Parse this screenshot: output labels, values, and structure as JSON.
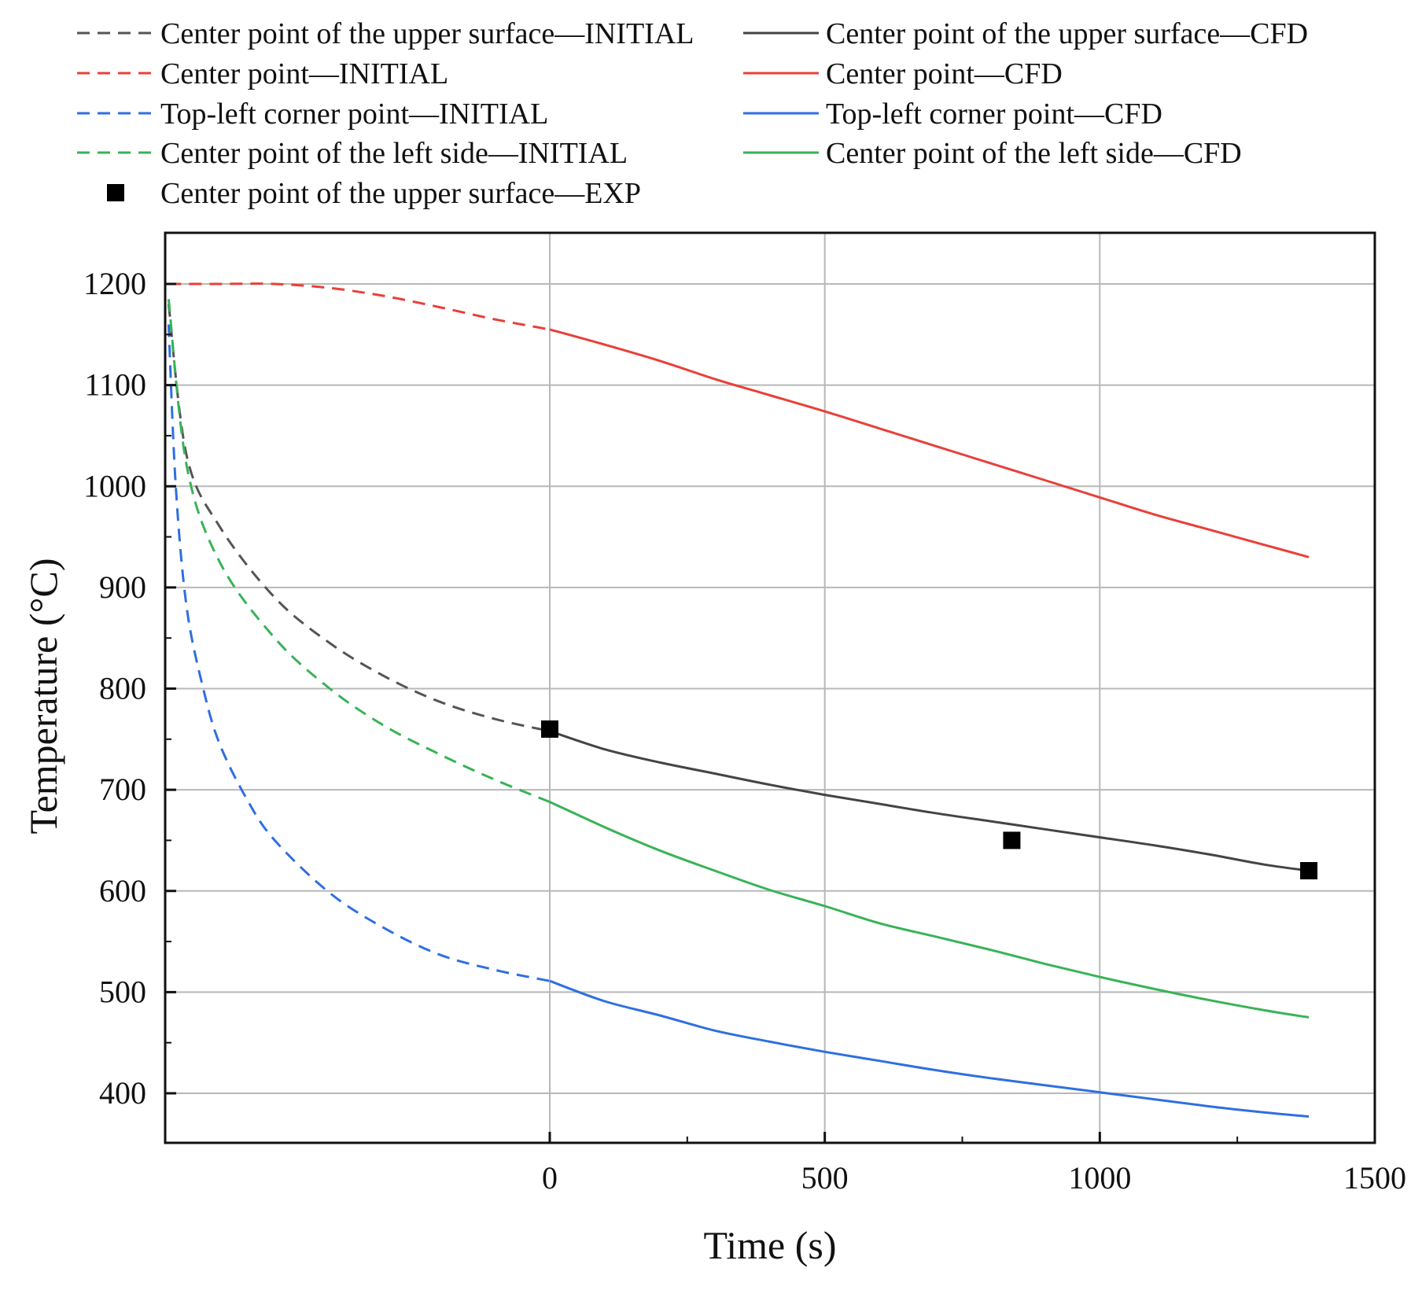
{
  "chart_data": {
    "type": "line",
    "title": "",
    "xlabel": "Time (s)",
    "ylabel": "Temperature (°C)",
    "xlim": [
      -700,
      1500
    ],
    "ylim": [
      350,
      1250
    ],
    "x_ticks": [
      0,
      500,
      1000,
      1500
    ],
    "x_tick_labels": [
      "0",
      "500",
      "1000",
      "1500"
    ],
    "y_ticks": [
      400,
      500,
      600,
      700,
      800,
      900,
      1000,
      1100,
      1200
    ],
    "y_tick_labels": [
      "400",
      "500",
      "600",
      "700",
      "800",
      "900",
      "1000",
      "1100",
      "1200"
    ],
    "grid": true,
    "legend_position": "top",
    "series": [
      {
        "name": "Center point of the upper surface—INITIAL",
        "color": "#555555",
        "style": "dashed",
        "x": [
          -693,
          -660,
          -600,
          -500,
          -400,
          -300,
          -200,
          -100,
          0
        ],
        "y": [
          1180,
          1030,
          960,
          890,
          845,
          812,
          787,
          770,
          758
        ]
      },
      {
        "name": "Center point of the upper surface—CFD",
        "color": "#444444",
        "style": "solid",
        "x": [
          0,
          100,
          200,
          300,
          400,
          500,
          600,
          700,
          800,
          900,
          1000,
          1100,
          1200,
          1300,
          1380
        ],
        "y": [
          758,
          740,
          727,
          716,
          705,
          695,
          686,
          677,
          669,
          661,
          653,
          645,
          636,
          626,
          620
        ]
      },
      {
        "name": "Center point—INITIAL",
        "color": "#e8403a",
        "style": "dashed",
        "x": [
          -693,
          -600,
          -500,
          -400,
          -300,
          -200,
          -100,
          0
        ],
        "y": [
          1200,
          1200,
          1200,
          1196,
          1188,
          1177,
          1165,
          1155
        ]
      },
      {
        "name": "Center point—CFD",
        "color": "#e8403a",
        "style": "solid",
        "x": [
          0,
          100,
          200,
          300,
          400,
          500,
          600,
          700,
          800,
          900,
          1000,
          1100,
          1200,
          1300,
          1380
        ],
        "y": [
          1155,
          1140,
          1124,
          1106,
          1090,
          1074,
          1057,
          1040,
          1023,
          1006,
          989,
          972,
          957,
          942,
          930
        ]
      },
      {
        "name": "Top-left corner point—INITIAL",
        "color": "#2f6fe0",
        "style": "dashed",
        "x": [
          -693,
          -680,
          -660,
          -630,
          -600,
          -550,
          -500,
          -400,
          -300,
          -200,
          -100,
          0
        ],
        "y": [
          1160,
          1000,
          880,
          800,
          745,
          690,
          650,
          598,
          563,
          537,
          522,
          511
        ]
      },
      {
        "name": "Top-left corner point—CFD",
        "color": "#2f6fe0",
        "style": "solid",
        "x": [
          0,
          100,
          200,
          300,
          400,
          500,
          600,
          700,
          800,
          900,
          1000,
          1100,
          1200,
          1300,
          1380
        ],
        "y": [
          511,
          491,
          477,
          462,
          451,
          441,
          432,
          423,
          415,
          408,
          401,
          394,
          387,
          381,
          377
        ]
      },
      {
        "name": "Center point of the left side—INITIAL",
        "color": "#38b357",
        "style": "dashed",
        "x": [
          -693,
          -660,
          -600,
          -500,
          -400,
          -300,
          -200,
          -100,
          0
        ],
        "y": [
          1185,
          1020,
          925,
          850,
          800,
          763,
          735,
          710,
          688
        ]
      },
      {
        "name": "Center point of the left side—CFD",
        "color": "#38b357",
        "style": "solid",
        "x": [
          0,
          100,
          200,
          300,
          400,
          500,
          600,
          700,
          800,
          900,
          1000,
          1100,
          1200,
          1300,
          1380
        ],
        "y": [
          688,
          663,
          640,
          620,
          601,
          585,
          568,
          555,
          542,
          528,
          515,
          503,
          492,
          482,
          475
        ]
      },
      {
        "name": "Center point of the upper surface—EXP",
        "color": "#000000",
        "style": "marker-square",
        "x": [
          0,
          840,
          1380
        ],
        "y": [
          760,
          650,
          620
        ]
      }
    ]
  },
  "legend": {
    "left_column": [
      "Center point of the upper surface—INITIAL",
      "Center point—INITIAL",
      "Top-left corner point—INITIAL",
      "Center point of the left side—INITIAL",
      "Center point of the upper surface—EXP"
    ],
    "right_column": [
      "Center point of the upper surface—CFD",
      "Center point—CFD",
      "Top-left corner point—CFD",
      "Center point of the left side—CFD"
    ]
  }
}
